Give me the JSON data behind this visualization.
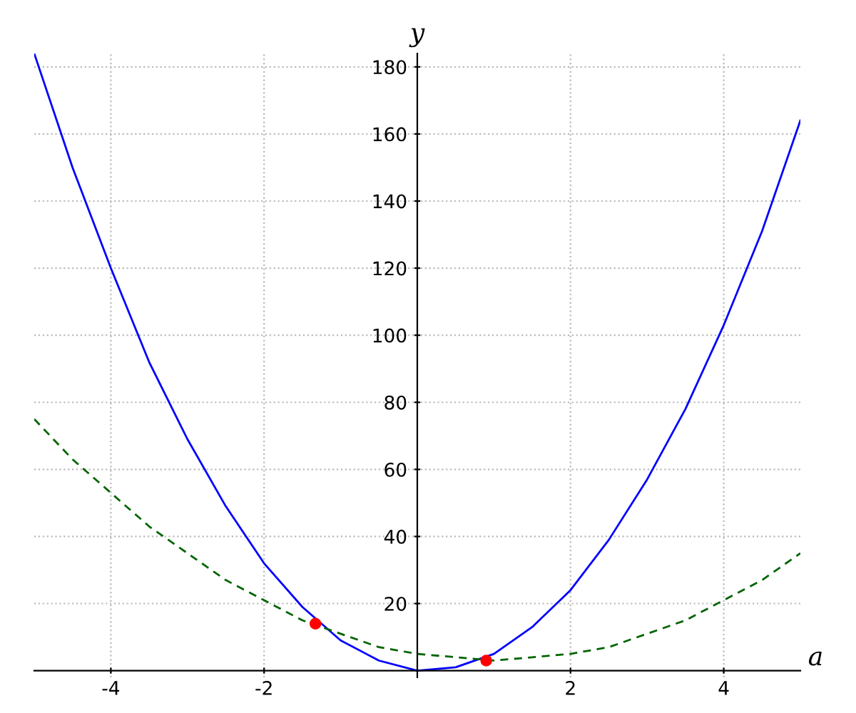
{
  "chart_data": {
    "type": "line",
    "xlabel": "a",
    "ylabel": "y",
    "xlim": [
      -5,
      5
    ],
    "ylim": [
      -2,
      184
    ],
    "xticks": [
      -4,
      -2,
      2,
      4
    ],
    "yticks": [
      20,
      40,
      60,
      80,
      100,
      120,
      140,
      160,
      180
    ],
    "grid": true,
    "marker": "none",
    "series": [
      {
        "color": "#0000ff",
        "line_style": "solid",
        "x": [
          -5,
          -4.5,
          -4,
          -3.5,
          -3,
          -2.5,
          -2,
          -1.5,
          -1,
          -0.5,
          0,
          0.5,
          1,
          1.5,
          2,
          2.5,
          3,
          3.5,
          4,
          4.5,
          5
        ],
        "values": [
          184,
          150,
          120,
          92,
          69,
          49,
          32,
          19,
          9,
          3,
          0,
          1,
          5,
          13,
          24,
          39,
          57,
          78,
          103,
          131,
          164
        ]
      },
      {
        "color": "#006400",
        "line_style": "dashed",
        "x": [
          -5,
          -4.5,
          -4,
          -3.5,
          -3,
          -2.5,
          -2,
          -1.5,
          -1,
          -0.5,
          0,
          0.5,
          1,
          1.5,
          2,
          2.5,
          3,
          3.5,
          4,
          4.5,
          5
        ],
        "values": [
          75,
          63,
          53,
          43,
          35,
          27,
          21,
          15,
          11,
          7,
          5,
          4,
          3,
          4,
          5,
          7,
          11,
          15,
          21,
          27,
          35
        ]
      },
      {
        "type": "scatter",
        "color": "#ff0000",
        "marker": "circle",
        "x": [
          -1.33,
          0.9
        ],
        "values": [
          14,
          3
        ]
      }
    ]
  }
}
